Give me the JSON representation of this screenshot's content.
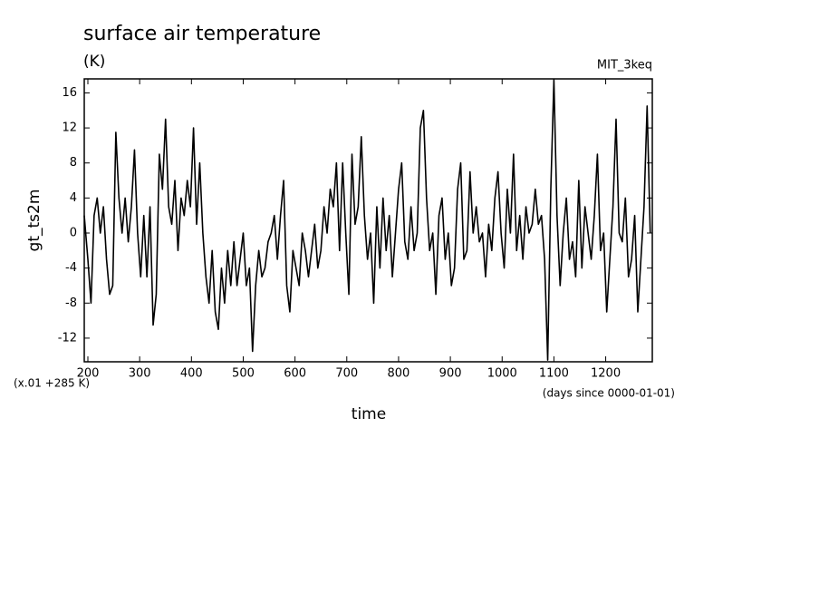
{
  "chart_data": {
    "type": "line",
    "title": "surface air temperature",
    "subtitle": "(K)",
    "annotation": "MIT_3keq",
    "ylabel": "gt_ts2m",
    "ylabel_unit": "(x.01 +285 K)",
    "xlabel": "time",
    "xlabel_unit": "(days since 0000-01-01)",
    "color": "#000000",
    "xlim": [
      193,
      1290
    ],
    "ylim": [
      -14.7,
      17.6
    ],
    "xticks": [
      200,
      300,
      400,
      500,
      600,
      700,
      800,
      900,
      1000,
      1100,
      1200
    ],
    "yticks": [
      -12,
      -8,
      -4,
      0,
      4,
      8,
      12,
      16
    ],
    "x": [
      193,
      200,
      206,
      212,
      218,
      224,
      230,
      236,
      242,
      248,
      254,
      260,
      266,
      272,
      278,
      284,
      290,
      296,
      302,
      308,
      314,
      320,
      326,
      332,
      338,
      344,
      350,
      356,
      362,
      368,
      374,
      380,
      386,
      392,
      398,
      404,
      410,
      416,
      422,
      428,
      434,
      440,
      446,
      452,
      458,
      464,
      470,
      476,
      482,
      488,
      494,
      500,
      506,
      512,
      518,
      524,
      530,
      536,
      542,
      548,
      554,
      560,
      566,
      572,
      578,
      584,
      590,
      596,
      602,
      608,
      614,
      620,
      626,
      632,
      638,
      644,
      650,
      656,
      662,
      668,
      674,
      680,
      686,
      692,
      698,
      704,
      710,
      716,
      722,
      728,
      734,
      740,
      746,
      752,
      758,
      764,
      770,
      776,
      782,
      788,
      794,
      800,
      806,
      812,
      818,
      824,
      830,
      836,
      842,
      848,
      854,
      860,
      866,
      872,
      878,
      884,
      890,
      896,
      902,
      908,
      914,
      920,
      926,
      932,
      938,
      944,
      950,
      956,
      962,
      968,
      974,
      980,
      986,
      992,
      998,
      1004,
      1010,
      1016,
      1022,
      1028,
      1034,
      1040,
      1046,
      1052,
      1058,
      1064,
      1070,
      1076,
      1082,
      1088,
      1094,
      1100,
      1106,
      1112,
      1118,
      1124,
      1130,
      1136,
      1142,
      1148,
      1154,
      1160,
      1166,
      1172,
      1178,
      1184,
      1190,
      1196,
      1202,
      1208,
      1214,
      1220,
      1226,
      1232,
      1238,
      1244,
      1250,
      1256,
      1262,
      1268,
      1274,
      1280,
      1286
    ],
    "values": [
      2,
      -3,
      -8,
      2,
      4,
      0,
      3,
      -3,
      -7,
      -6,
      11.5,
      4,
      0,
      4,
      -1,
      3,
      9.5,
      0,
      -5,
      2,
      -5,
      3,
      -10.5,
      -7,
      9,
      5,
      13,
      3,
      1,
      6,
      -2,
      4,
      2,
      6,
      3,
      12,
      1,
      8,
      0,
      -5,
      -8,
      -2,
      -9,
      -11,
      -4,
      -8,
      -2,
      -6,
      -1,
      -6,
      -3,
      0,
      -6,
      -4,
      -13.5,
      -6,
      -2,
      -5,
      -4,
      -1,
      0,
      2,
      -3,
      2,
      6,
      -6,
      -9,
      -2,
      -4,
      -6,
      0,
      -2,
      -5,
      -2,
      1,
      -4,
      -2,
      3,
      0,
      5,
      3,
      8,
      -2,
      8,
      0,
      -7,
      9,
      1,
      3,
      11,
      2,
      -3,
      0,
      -8,
      3,
      -4,
      4,
      -2,
      2,
      -5,
      0,
      5,
      8,
      -1,
      -3,
      3,
      -2,
      0,
      12,
      14,
      4,
      -2,
      0,
      -7,
      2,
      4,
      -3,
      0,
      -6,
      -4,
      5,
      8,
      -3,
      -2,
      7,
      0,
      3,
      -1,
      0,
      -5,
      1,
      -2,
      4,
      7,
      0,
      -4,
      5,
      0,
      9,
      -2,
      2,
      -3,
      3,
      0,
      1,
      5,
      1,
      2,
      -3,
      -14.5,
      5,
      17.5,
      2,
      -6,
      0,
      4,
      -3,
      -1,
      -5,
      6,
      -4,
      3,
      0,
      -3,
      2,
      9,
      -2,
      0,
      -9,
      -3,
      3,
      13,
      0,
      -1,
      4,
      -5,
      -3,
      2,
      -9,
      -3,
      3,
      14.5,
      0
    ]
  }
}
